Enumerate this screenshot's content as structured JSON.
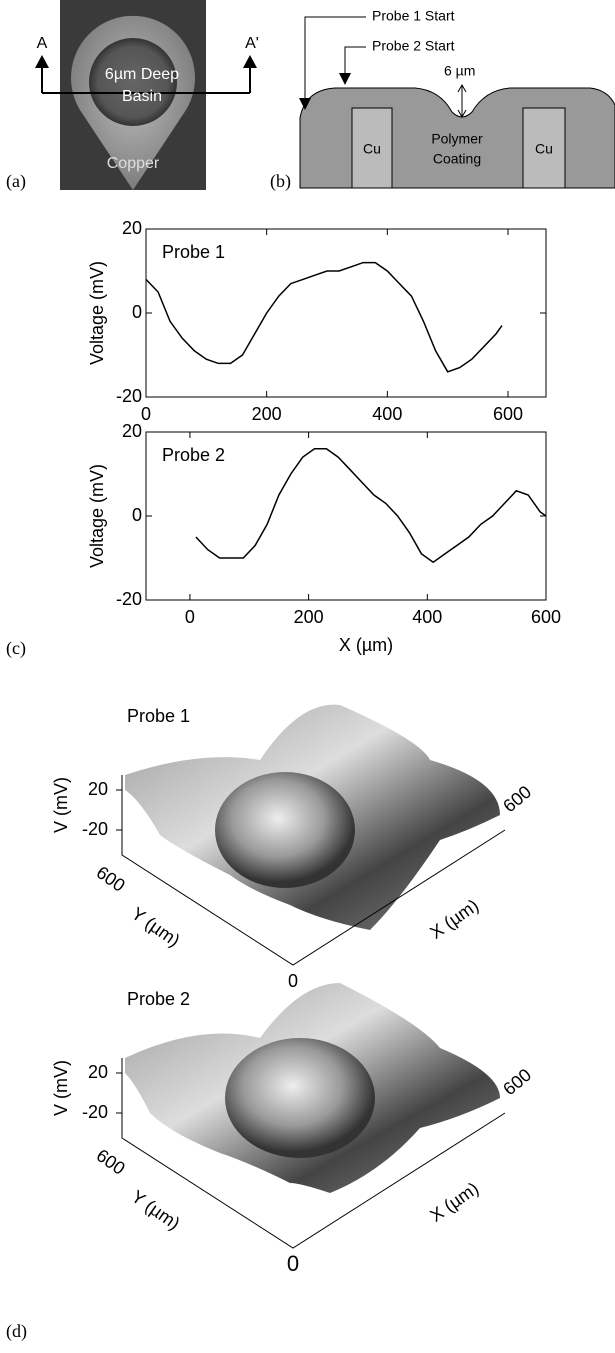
{
  "panel_a": {
    "label": "(a)",
    "marker_left": "A",
    "marker_right": "A'",
    "basin_line1": "6µm Deep",
    "basin_line2": "Basin",
    "material": "Copper"
  },
  "panel_b": {
    "label": "(b)",
    "probe1_start": "Probe 1 Start",
    "probe2_start": "Probe 2 Start",
    "depth": "6 µm",
    "cu_left": "Cu",
    "coating_line1": "Polymer",
    "coating_line2": "Coating",
    "cu_right": "Cu"
  },
  "panel_c": {
    "label": "(c)"
  },
  "chart_data": [
    {
      "type": "line",
      "annotation": "Probe 1",
      "y_label": "Voltage (mV)",
      "color": "#000000",
      "x": [
        0,
        20,
        40,
        60,
        80,
        100,
        120,
        140,
        160,
        180,
        200,
        220,
        240,
        260,
        280,
        300,
        320,
        340,
        360,
        380,
        400,
        420,
        440,
        460,
        480,
        500,
        520,
        540,
        560,
        580,
        590
      ],
      "values": [
        8,
        5,
        -2,
        -6,
        -9,
        -11,
        -12,
        -12,
        -10,
        -5,
        0,
        4,
        7,
        8,
        9,
        10,
        10,
        11,
        12,
        12,
        10,
        7,
        4,
        -2,
        -9,
        -14,
        -13,
        -11,
        -8,
        -5,
        -3
      ],
      "xlim": [
        0,
        663
      ],
      "ylim": [
        -20,
        20
      ],
      "xticks": [
        0,
        200,
        400,
        600
      ],
      "yticks": [
        -20,
        0,
        20
      ]
    },
    {
      "type": "line",
      "annotation": "Probe 2",
      "y_label": "Voltage (mV)",
      "x_label": "X (µm)",
      "color": "#000000",
      "x": [
        10,
        30,
        50,
        70,
        90,
        110,
        130,
        150,
        170,
        190,
        210,
        230,
        250,
        270,
        290,
        310,
        330,
        350,
        370,
        390,
        410,
        430,
        450,
        470,
        490,
        510,
        530,
        550,
        570,
        590,
        600
      ],
      "values": [
        -5,
        -8,
        -10,
        -10,
        -10,
        -7,
        -2,
        5,
        10,
        14,
        16,
        16,
        14,
        11,
        8,
        5,
        3,
        0,
        -4,
        -9,
        -11,
        -9,
        -7,
        -5,
        -2,
        0,
        3,
        6,
        5,
        1,
        0
      ],
      "xlim": [
        -74,
        600
      ],
      "ylim": [
        -20,
        20
      ],
      "xticks": [
        0,
        200,
        400,
        600
      ],
      "yticks": [
        -20,
        0,
        20
      ]
    }
  ],
  "panel_d": {
    "label": "(d)",
    "plots": [
      {
        "title": "Probe 1",
        "v_top": 20,
        "v_bottom": -20,
        "v_label": "V (mV)",
        "y_max": 600,
        "y_label": "Y (µm)",
        "x_max": 600,
        "x_label": "X (µm)",
        "origin": 0
      },
      {
        "title": "Probe 2",
        "v_top": 20,
        "v_bottom": -20,
        "v_label": "V (mV)",
        "y_max": 600,
        "y_label": "Y (µm)",
        "x_max": 600,
        "x_label": "X (µm)",
        "origin": 0
      }
    ]
  }
}
